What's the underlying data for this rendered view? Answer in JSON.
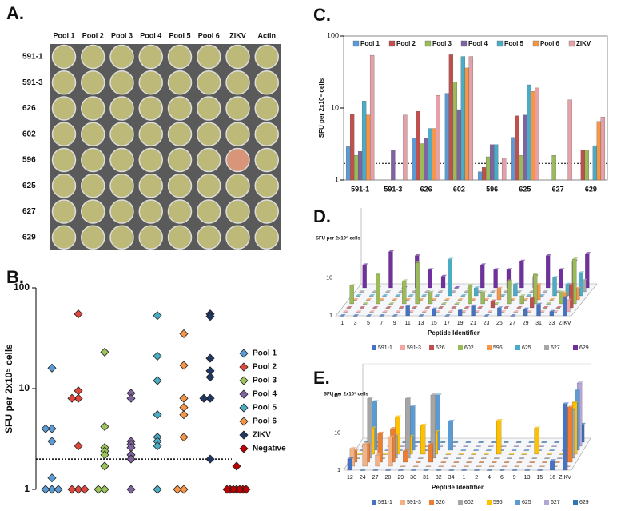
{
  "plate": {
    "label": "A.",
    "columns": [
      "Pool 1",
      "Pool 2",
      "Pool 3",
      "Pool 4",
      "Pool 5",
      "Pool 6",
      "ZIKV",
      "Actin"
    ],
    "rows": [
      "591-1",
      "591-3",
      "626",
      "602",
      "596",
      "625",
      "627",
      "629"
    ]
  },
  "chart_data": [
    {
      "type": "scatter",
      "label": "B.",
      "ylabel": "SFU per 2x10⁵ cells",
      "log_scale": true,
      "ylim": [
        1,
        100
      ],
      "yticks": [
        1,
        10,
        100
      ],
      "reference_line": 2,
      "series": [
        {
          "name": "Pool 1",
          "color": "#5b9bd5",
          "values": [
            16,
            4,
            4,
            3,
            1.3,
            1,
            1,
            1
          ]
        },
        {
          "name": "Pool 2",
          "color": "#e0473d",
          "values": [
            55,
            9.5,
            8,
            8,
            2.7,
            1,
            1,
            1
          ]
        },
        {
          "name": "Pool 3",
          "color": "#9bc45a",
          "values": [
            23,
            4.2,
            2.6,
            2.4,
            2.2,
            1.7,
            1,
            1
          ]
        },
        {
          "name": "Pool 4",
          "color": "#8064a2",
          "values": [
            9,
            8,
            3,
            2.8,
            2.6,
            2.2,
            2,
            1
          ]
        },
        {
          "name": "Pool 5",
          "color": "#4bacc6",
          "values": [
            53,
            21,
            12,
            5.5,
            3.3,
            3,
            2.7,
            1
          ]
        },
        {
          "name": "Pool 6",
          "color": "#f79646",
          "values": [
            35,
            17,
            8,
            6.5,
            5.5,
            3.3,
            1,
            1
          ]
        },
        {
          "name": "ZIKV",
          "color": "#1f3864",
          "values": [
            55,
            52,
            20,
            15,
            13,
            8,
            8,
            2
          ]
        },
        {
          "name": "Negative",
          "color": "#c00000",
          "values": [
            1.7,
            1,
            1,
            1,
            1,
            1,
            1,
            1
          ]
        }
      ]
    },
    {
      "type": "bar",
      "label": "C.",
      "ylabel": "SFU per 2x10⁵ cells",
      "log_scale": true,
      "ylim": [
        1,
        100
      ],
      "yticks": [
        1,
        10,
        100
      ],
      "reference_line": 1.7,
      "categories": [
        "591-1",
        "591-3",
        "626",
        "602",
        "596",
        "625",
        "627",
        "629"
      ],
      "series": [
        {
          "name": "Pool 1",
          "color": "#5b9bd5",
          "values": [
            2.9,
            1,
            3.8,
            16,
            1.3,
            3.9,
            1,
            1
          ]
        },
        {
          "name": "Pool 2",
          "color": "#c0504d",
          "values": [
            8.2,
            1,
            9,
            55,
            1.5,
            7.8,
            1,
            2.6
          ]
        },
        {
          "name": "Pool 3",
          "color": "#9bbb59",
          "values": [
            2.2,
            1,
            3.2,
            23,
            2.1,
            2.2,
            2.2,
            2.6
          ]
        },
        {
          "name": "Pool 4",
          "color": "#8064a2",
          "values": [
            2.5,
            2.6,
            3.8,
            9.5,
            3.1,
            8,
            1,
            1
          ]
        },
        {
          "name": "Pool 5",
          "color": "#4bacc6",
          "values": [
            12.5,
            1,
            5.2,
            52,
            3.1,
            21,
            1,
            3
          ]
        },
        {
          "name": "Pool 6",
          "color": "#f79646",
          "values": [
            8,
            1,
            5.2,
            36,
            1,
            17,
            1,
            6.5
          ]
        },
        {
          "name": "ZIKV",
          "color": "#e6a0a8",
          "values": [
            54,
            8,
            15,
            52,
            2,
            19,
            13,
            7.5
          ]
        }
      ]
    },
    {
      "type": "bar3d",
      "label": "D.",
      "ylabel": "SFU per 2x10⁵ cells",
      "xlabel": "Peptide Identifier",
      "log_scale": true,
      "ylim": [
        1,
        100
      ],
      "yticks": [
        1,
        10
      ],
      "categories": [
        "1",
        "3",
        "5",
        "7",
        "9",
        "11",
        "13",
        "15",
        "17",
        "19",
        "21",
        "23",
        "25",
        "27",
        "29",
        "31",
        "33",
        "ZIKV"
      ],
      "series": [
        {
          "name": "591-1",
          "color": "#4472c4",
          "values": [
            1,
            1,
            1,
            1,
            1,
            1.8,
            1,
            1.5,
            1,
            1.4,
            1.8,
            1,
            1.6,
            1,
            1.5,
            2,
            1.3,
            3
          ]
        },
        {
          "name": "591-3",
          "color": "#f4a6a0",
          "values": [
            1,
            1,
            1,
            1,
            1,
            1,
            1,
            1,
            1,
            1,
            1,
            1,
            1,
            1,
            1,
            1,
            1,
            2
          ]
        },
        {
          "name": "626",
          "color": "#c0504d",
          "values": [
            1,
            1,
            1,
            1,
            1,
            1,
            1,
            1,
            1,
            1,
            1,
            1.5,
            1,
            1,
            1.8,
            1,
            1,
            4
          ]
        },
        {
          "name": "602",
          "color": "#9bbb59",
          "values": [
            3,
            1,
            6,
            1,
            4,
            12,
            2,
            1,
            1,
            3,
            2,
            1,
            4,
            1.6,
            6,
            1,
            2,
            15
          ]
        },
        {
          "name": "596",
          "color": "#f79646",
          "values": [
            1,
            1,
            1,
            1,
            1,
            1,
            1,
            1,
            1,
            1,
            1,
            2,
            1,
            1,
            2.5,
            1,
            1.5,
            2
          ]
        },
        {
          "name": "625",
          "color": "#4bacc6",
          "values": [
            1,
            1,
            1,
            1,
            1,
            1,
            1,
            9,
            1,
            1.6,
            1,
            1,
            2,
            1,
            1,
            3,
            2,
            4
          ]
        },
        {
          "name": "627",
          "color": "#a6a6a6",
          "values": [
            1,
            1,
            1,
            1,
            1,
            1,
            1,
            1,
            1,
            1,
            1,
            1,
            1,
            1,
            1,
            1,
            1,
            2
          ]
        },
        {
          "name": "629",
          "color": "#7030a0",
          "values": [
            4,
            1,
            9,
            1,
            7,
            3,
            2,
            1,
            1,
            4,
            3,
            3,
            5,
            2,
            7,
            3,
            5,
            8
          ]
        }
      ]
    },
    {
      "type": "bar3d",
      "label": "E.",
      "ylabel": "SFU per 2x10⁵ cells",
      "xlabel": "Peptide Identifier",
      "log_scale": true,
      "ylim": [
        1,
        100
      ],
      "yticks": [
        1,
        10,
        100
      ],
      "categories": [
        "12",
        "24",
        "27",
        "28",
        "29",
        "30",
        "31",
        "32",
        "34",
        "1",
        "2",
        "4",
        "6",
        "9",
        "13",
        "15",
        "16",
        "ZIKV"
      ],
      "series": [
        {
          "name": "591-1",
          "color": "#4472c4",
          "values": [
            2,
            1,
            1,
            1,
            1,
            1,
            1,
            1,
            1,
            1,
            1,
            1,
            1,
            1,
            1,
            1,
            1.8,
            60
          ]
        },
        {
          "name": "591-3",
          "color": "#f4b183",
          "values": [
            3,
            4,
            2,
            6,
            1,
            1,
            1,
            1,
            1,
            1,
            1,
            1,
            1,
            1,
            1,
            1,
            1,
            1
          ]
        },
        {
          "name": "626",
          "color": "#ed7d31",
          "values": [
            2,
            3,
            6,
            8,
            2,
            1,
            3,
            1,
            1,
            1,
            1,
            1,
            1,
            1,
            1,
            1,
            1,
            30
          ]
        },
        {
          "name": "602",
          "color": "#a5a5a5",
          "values": [
            1,
            40,
            1,
            4,
            40,
            1,
            50,
            1,
            1,
            1,
            1,
            1,
            1,
            1,
            1,
            1,
            1,
            20
          ]
        },
        {
          "name": "596",
          "color": "#ffc000",
          "values": [
            1,
            5,
            1,
            10,
            3,
            6,
            4,
            1,
            1,
            1,
            1,
            8,
            1,
            1,
            5,
            1,
            1,
            25
          ]
        },
        {
          "name": "625",
          "color": "#5b9bd5",
          "values": [
            1,
            20,
            1,
            1,
            15,
            1,
            30,
            6,
            1,
            1,
            1,
            1,
            1,
            1,
            1,
            1,
            1,
            40
          ]
        },
        {
          "name": "627",
          "color": "#b4a7d6",
          "values": [
            1,
            1,
            1,
            1,
            1,
            1,
            1,
            1,
            1,
            1,
            1,
            1,
            1,
            1,
            1,
            1,
            2,
            50
          ]
        },
        {
          "name": "629",
          "color": "#2e75b6",
          "values": [
            1,
            1,
            1,
            1,
            1,
            1,
            1,
            1,
            1,
            1,
            1,
            1,
            1,
            1,
            1,
            1,
            1,
            3
          ]
        }
      ]
    }
  ]
}
